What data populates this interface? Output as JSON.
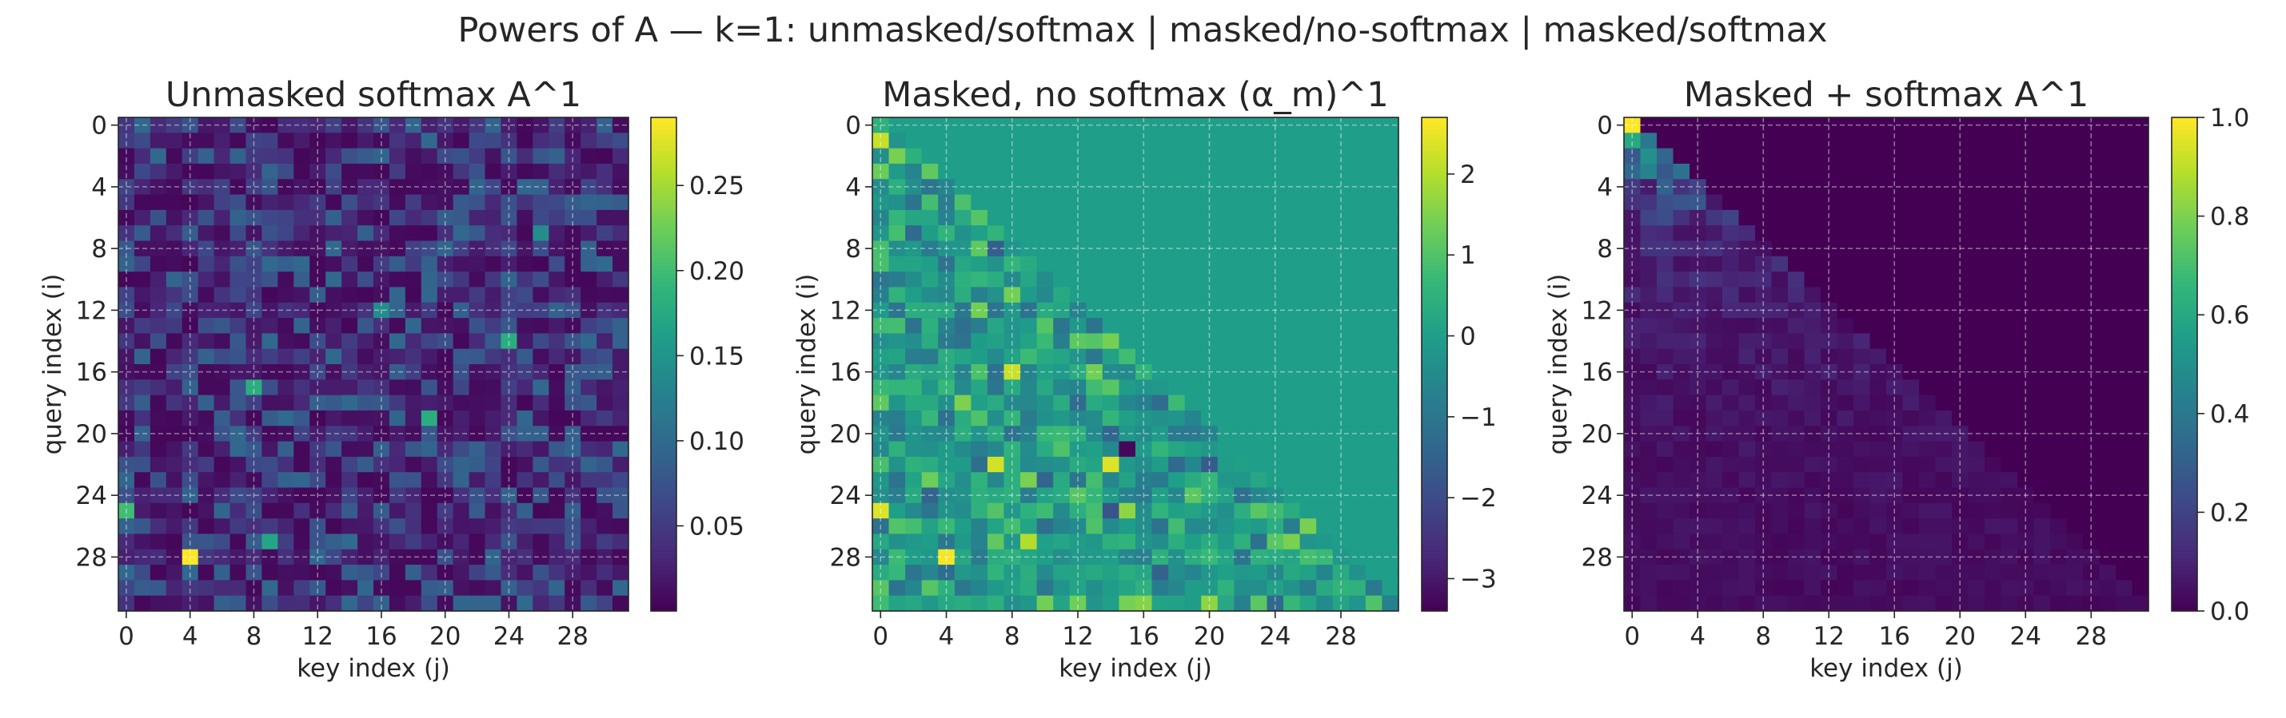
{
  "figure": {
    "suptitle": "Powers of A — k=1:  unmasked/softmax  |  masked/no-softmax  |  masked/softmax"
  },
  "chart_data": [
    {
      "type": "heatmap",
      "title": "Unmasked softmax  A^1",
      "xlabel": "key index (j)",
      "ylabel": "query index (i)",
      "n": 32,
      "masked": false,
      "colormap": "viridis",
      "xticks": [
        0,
        4,
        8,
        12,
        16,
        20,
        24,
        28
      ],
      "yticks": [
        0,
        4,
        8,
        12,
        16,
        20,
        24,
        28
      ],
      "grid": true,
      "colorbar": {
        "vmin": 0.0,
        "vmax": 0.29,
        "ticks": [
          0.05,
          0.1,
          0.15,
          0.2,
          0.25
        ],
        "tick_labels": [
          "0.05",
          "0.10",
          "0.15",
          "0.20",
          "0.25"
        ]
      },
      "notable_cells": [
        {
          "row": 28,
          "col": 4,
          "value": 0.29
        },
        {
          "row": 25,
          "col": 0,
          "value": 0.2
        },
        {
          "row": 17,
          "col": 8,
          "value": 0.18
        },
        {
          "row": 27,
          "col": 9,
          "value": 0.17
        },
        {
          "row": 19,
          "col": 19,
          "value": 0.18
        },
        {
          "row": 14,
          "col": 24,
          "value": 0.18
        },
        {
          "row": 12,
          "col": 16,
          "value": 0.14
        },
        {
          "row": 7,
          "col": 26,
          "value": 0.14
        }
      ]
    },
    {
      "type": "heatmap",
      "title": "Masked, no softmax  (α_m)^1",
      "xlabel": "key index (j)",
      "ylabel": "query index (i)",
      "n": 32,
      "masked": true,
      "mask_value": 0,
      "colormap": "viridis",
      "xticks": [
        0,
        4,
        8,
        12,
        16,
        20,
        24,
        28
      ],
      "yticks": [
        0,
        4,
        8,
        12,
        16,
        20,
        24,
        28
      ],
      "grid": true,
      "colorbar": {
        "vmin": -3.4,
        "vmax": 2.7,
        "ticks": [
          2,
          1,
          0,
          -1,
          -2,
          -3
        ],
        "tick_labels": [
          "2",
          "1",
          "0",
          "−1",
          "−2",
          "−3"
        ]
      },
      "notable_cells": [
        {
          "row": 28,
          "col": 4,
          "value": 2.6
        },
        {
          "row": 25,
          "col": 0,
          "value": 2.4
        },
        {
          "row": 22,
          "col": 7,
          "value": 2.3
        },
        {
          "row": 16,
          "col": 8,
          "value": 2.2
        },
        {
          "row": 21,
          "col": 15,
          "value": -3.3
        },
        {
          "row": 22,
          "col": 14,
          "value": 2.4
        },
        {
          "row": 1,
          "col": 0,
          "value": 2.2
        },
        {
          "row": 27,
          "col": 9,
          "value": 2.0
        }
      ]
    },
    {
      "type": "heatmap",
      "title": "Masked + softmax  A^1",
      "xlabel": "key index (j)",
      "ylabel": "query index (i)",
      "n": 32,
      "masked": true,
      "mask_value": 0,
      "colormap": "viridis",
      "xticks": [
        0,
        4,
        8,
        12,
        16,
        20,
        24,
        28
      ],
      "yticks": [
        0,
        4,
        8,
        12,
        16,
        20,
        24,
        28
      ],
      "grid": true,
      "colorbar": {
        "vmin": 0.0,
        "vmax": 1.0,
        "ticks": [
          1.0,
          0.8,
          0.6,
          0.4,
          0.2,
          0.0
        ],
        "tick_labels": [
          "1.0",
          "0.8",
          "0.6",
          "0.4",
          "0.2",
          "0.0"
        ]
      },
      "notable_cells": [
        {
          "row": 0,
          "col": 0,
          "value": 1.0
        },
        {
          "row": 1,
          "col": 0,
          "value": 0.6
        },
        {
          "row": 1,
          "col": 1,
          "value": 0.4
        },
        {
          "row": 2,
          "col": 1,
          "value": 0.5
        },
        {
          "row": 3,
          "col": 1,
          "value": 0.45
        }
      ]
    }
  ]
}
